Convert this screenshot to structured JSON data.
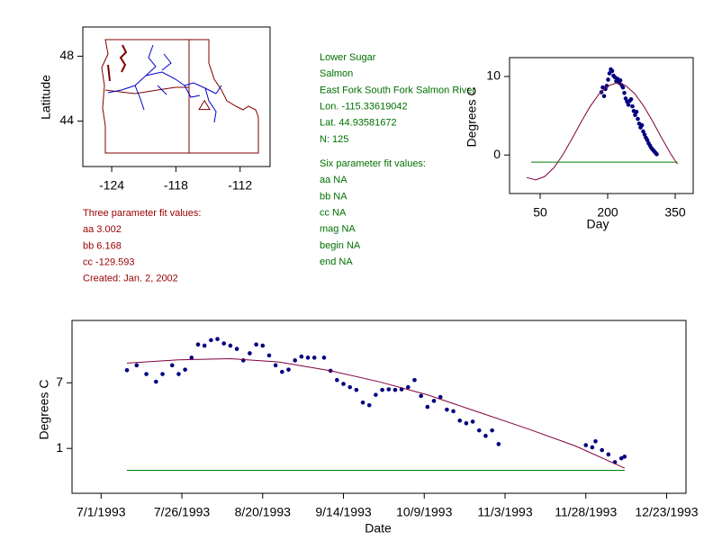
{
  "info": {
    "three_param": [
      "Three parameter fit values:",
      "aa 3.002",
      "bb 6.168",
      "cc -129.593",
      "Created:   Jan. 2, 2002"
    ],
    "site": [
      "Lower Sugar",
      "Salmon",
      "East Fork South Fork Salmon River",
      "Lon. -115.33619042",
      "Lat. 44.93581672",
      "N: 125"
    ],
    "six_param": [
      "Six parameter fit values:",
      "aa NA",
      "bb NA",
      "cc NA",
      "mag NA",
      "begin NA",
      "end NA"
    ]
  },
  "chart_data": [
    {
      "type": "map",
      "y_label": "Latitude",
      "xlim": [
        -126.7,
        -109.2
      ],
      "ylim": [
        41.2,
        49.8
      ],
      "xticks": [
        -124,
        -118,
        -112
      ],
      "yticks": [
        44,
        48
      ],
      "site": {
        "lon": -115.33619042,
        "lat": 44.93581672,
        "color": "#800000"
      }
    },
    {
      "type": "scatter",
      "x_label": "Day",
      "y_label": "Degrees C",
      "xlim": [
        -18,
        390
      ],
      "ylim": [
        -4.9,
        12.4
      ],
      "xticks": [
        50,
        200,
        350
      ],
      "yticks": [
        0,
        10
      ],
      "series": [
        {
          "mode": "markers",
          "color": "#000080",
          "x": [
            186,
            189,
            192,
            195,
            198,
            201,
            204,
            207,
            210,
            213,
            216,
            219,
            222,
            225,
            228,
            231,
            234,
            237,
            240,
            243,
            246,
            249,
            252,
            255,
            258,
            261,
            264,
            267,
            270,
            273,
            276,
            279,
            282,
            285,
            288,
            291,
            294,
            297,
            300,
            303,
            306,
            309
          ],
          "values": [
            8.0,
            8.6,
            7.5,
            8.4,
            8.8,
            9.6,
            10.4,
            10.9,
            10.7,
            10.1,
            9.9,
            9.4,
            9.7,
            9.2,
            9.5,
            8.9,
            8.6,
            7.9,
            7.2,
            6.8,
            6.4,
            6.9,
            7.1,
            6.2,
            5.6,
            5.1,
            5.5,
            4.6,
            4.0,
            3.5,
            3.8,
            3.0,
            2.6,
            2.2,
            1.9,
            1.5,
            1.2,
            0.9,
            0.7,
            0.5,
            0.3,
            0.1
          ]
        },
        {
          "mode": "line",
          "color": "#800040",
          "x": [
            20,
            40,
            60,
            80,
            100,
            120,
            140,
            160,
            180,
            200,
            220,
            240,
            260,
            280,
            300,
            320,
            340,
            355
          ],
          "values": [
            -2.86,
            -3.16,
            -2.74,
            -1.65,
            0.0,
            1.99,
            4.1,
            6.09,
            7.71,
            8.78,
            9.17,
            8.84,
            7.82,
            6.24,
            4.28,
            2.17,
            0.15,
            -1.15
          ]
        },
        {
          "mode": "line",
          "color": "#008000",
          "x": [
            30,
            355
          ],
          "values": [
            -0.9,
            -0.9
          ]
        }
      ]
    },
    {
      "type": "scatter",
      "x_label": "Date",
      "y_label": "Degrees C",
      "xlim": [
        "1993-06-22",
        "1993-12-29"
      ],
      "ylim": [
        -3.1,
        12.7
      ],
      "xticks": [
        {
          "value": "1993-07-01",
          "label": "7/1/1993"
        },
        {
          "value": "1993-07-26",
          "label": "7/26/1993"
        },
        {
          "value": "1993-08-20",
          "label": "8/20/1993"
        },
        {
          "value": "1993-09-14",
          "label": "9/14/1993"
        },
        {
          "value": "1993-10-09",
          "label": "10/9/1993"
        },
        {
          "value": "1993-11-03",
          "label": "11/3/1993"
        },
        {
          "value": "1993-11-28",
          "label": "11/28/1993"
        },
        {
          "value": "1993-12-23",
          "label": "12/23/1993"
        }
      ],
      "yticks": [
        1,
        7
      ],
      "series": [
        {
          "mode": "markers",
          "color": "#000080",
          "x": [
            "1993-07-09",
            "1993-07-12",
            "1993-07-15",
            "1993-07-18",
            "1993-07-20",
            "1993-07-23",
            "1993-07-25",
            "1993-07-27",
            "1993-07-29",
            "1993-07-31",
            "1993-08-02",
            "1993-08-04",
            "1993-08-06",
            "1993-08-08",
            "1993-08-10",
            "1993-08-12",
            "1993-08-14",
            "1993-08-16",
            "1993-08-18",
            "1993-08-20",
            "1993-08-22",
            "1993-08-24",
            "1993-08-26",
            "1993-08-28",
            "1993-08-30",
            "1993-09-01",
            "1993-09-03",
            "1993-09-05",
            "1993-09-08",
            "1993-09-10",
            "1993-09-12",
            "1993-09-14",
            "1993-09-16",
            "1993-09-18",
            "1993-09-20",
            "1993-09-22",
            "1993-09-24",
            "1993-09-26",
            "1993-09-28",
            "1993-09-30",
            "1993-10-02",
            "1993-10-04",
            "1993-10-06",
            "1993-10-08",
            "1993-10-10",
            "1993-10-12",
            "1993-10-14",
            "1993-10-16",
            "1993-10-18",
            "1993-10-20",
            "1993-10-22",
            "1993-10-24",
            "1993-10-26",
            "1993-10-28",
            "1993-10-30",
            "1993-11-01",
            "1993-11-28",
            "1993-11-30",
            "1993-12-01",
            "1993-12-03",
            "1993-12-05",
            "1993-12-07",
            "1993-12-09",
            "1993-12-10"
          ],
          "values": [
            8.15,
            8.6,
            7.8,
            7.1,
            7.8,
            8.6,
            7.8,
            8.2,
            9.3,
            10.5,
            10.4,
            10.9,
            11.0,
            10.6,
            10.4,
            10.1,
            9.05,
            9.7,
            10.5,
            10.4,
            9.5,
            8.6,
            8.0,
            8.2,
            9.05,
            9.4,
            9.3,
            9.3,
            9.3,
            8.1,
            7.25,
            6.9,
            6.6,
            6.35,
            5.2,
            4.95,
            5.9,
            6.35,
            6.4,
            6.35,
            6.4,
            6.6,
            7.25,
            5.8,
            4.8,
            5.35,
            5.7,
            4.55,
            4.4,
            3.55,
            3.3,
            3.45,
            2.65,
            2.15,
            2.65,
            1.4,
            1.3,
            1.1,
            1.65,
            0.85,
            0.45,
            -0.25,
            0.1,
            0.25
          ]
        },
        {
          "mode": "line",
          "color": "#800040",
          "x": [
            "1993-07-09",
            "1993-07-25",
            "1993-08-10",
            "1993-08-25",
            "1993-09-10",
            "1993-09-25",
            "1993-10-10",
            "1993-10-25",
            "1993-11-10",
            "1993-11-25",
            "1993-12-10"
          ],
          "values": [
            8.8,
            9.1,
            9.2,
            8.9,
            8.1,
            7.1,
            5.9,
            4.4,
            2.8,
            1.2,
            -0.8
          ]
        },
        {
          "mode": "line",
          "color": "#008000",
          "x": [
            "1993-07-09",
            "1993-12-10"
          ],
          "values": [
            -1.0,
            -1.0
          ]
        }
      ]
    }
  ]
}
